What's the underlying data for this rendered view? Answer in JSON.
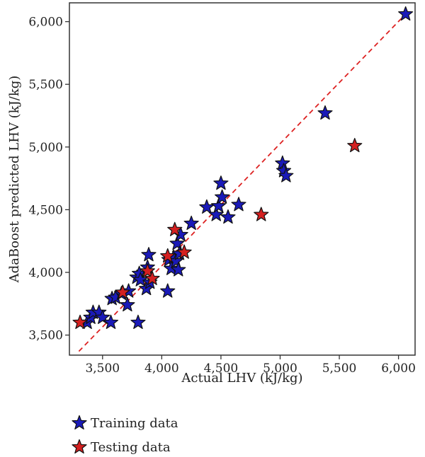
{
  "chart_data": {
    "type": "scatter",
    "xlabel": "Actual LHV  (kJ/kg)",
    "ylabel": "AdaBoost predicted LHV  (kJ/kg)",
    "xlim": [
      3220,
      6140
    ],
    "ylim": [
      3340,
      6150
    ],
    "x_ticks": [
      3500,
      4000,
      4500,
      5000,
      5500,
      6000
    ],
    "y_ticks": [
      3500,
      4000,
      4500,
      5000,
      5500,
      6000
    ],
    "x_tick_labels": [
      "3,500",
      "4,000",
      "4,500",
      "5,000",
      "5,500",
      "6,000"
    ],
    "y_tick_labels": [
      "3,500",
      "4,000",
      "4,500",
      "5,000",
      "5,500",
      "6,000"
    ],
    "reference_line": {
      "style": "dashed",
      "color": "#dd2222",
      "from": [
        3300,
        3370
      ],
      "to": [
        6060,
        6060
      ]
    },
    "legend_position": "bottom-left",
    "series": [
      {
        "name": "Training data",
        "color": "#1a1ab8",
        "points": [
          [
            3370,
            3600
          ],
          [
            3400,
            3640
          ],
          [
            3420,
            3680
          ],
          [
            3470,
            3680
          ],
          [
            3500,
            3640
          ],
          [
            3570,
            3600
          ],
          [
            3580,
            3790
          ],
          [
            3610,
            3800
          ],
          [
            3660,
            3830
          ],
          [
            3710,
            3740
          ],
          [
            3720,
            3850
          ],
          [
            3790,
            3960
          ],
          [
            3800,
            3600
          ],
          [
            3810,
            3990
          ],
          [
            3820,
            3940
          ],
          [
            3870,
            3870
          ],
          [
            3880,
            4040
          ],
          [
            3890,
            4140
          ],
          [
            3900,
            3920
          ],
          [
            4050,
            3850
          ],
          [
            4060,
            4100
          ],
          [
            4080,
            4030
          ],
          [
            4100,
            4120
          ],
          [
            4120,
            4090
          ],
          [
            4130,
            4230
          ],
          [
            4140,
            4020
          ],
          [
            4150,
            4150
          ],
          [
            4160,
            4300
          ],
          [
            4250,
            4390
          ],
          [
            4380,
            4520
          ],
          [
            4460,
            4460
          ],
          [
            4480,
            4530
          ],
          [
            4500,
            4710
          ],
          [
            4510,
            4600
          ],
          [
            4560,
            4440
          ],
          [
            4650,
            4540
          ],
          [
            5020,
            4870
          ],
          [
            5030,
            4810
          ],
          [
            5050,
            4770
          ],
          [
            5380,
            5270
          ],
          [
            6060,
            6060
          ]
        ]
      },
      {
        "name": "Testing data",
        "color": "#d42020",
        "points": [
          [
            3310,
            3600
          ],
          [
            3670,
            3840
          ],
          [
            3880,
            4010
          ],
          [
            3920,
            3950
          ],
          [
            4050,
            4130
          ],
          [
            4110,
            4340
          ],
          [
            4190,
            4160
          ],
          [
            4840,
            4460
          ],
          [
            5630,
            5010
          ]
        ]
      }
    ]
  },
  "legend": {
    "training_label": "Training data",
    "testing_label": "Testing data"
  }
}
